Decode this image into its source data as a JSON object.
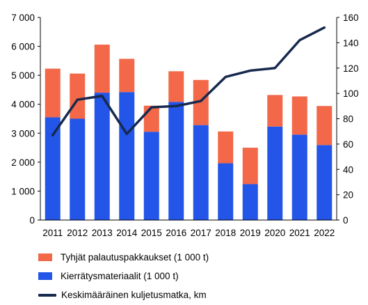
{
  "chart_data": {
    "type": "bar",
    "stacked": true,
    "categories": [
      "2011",
      "2012",
      "2013",
      "2014",
      "2015",
      "2016",
      "2017",
      "2018",
      "2019",
      "2020",
      "2021",
      "2022"
    ],
    "series": [
      {
        "name": "Kierrätysmateriaalit (1 000 t)",
        "type": "bar",
        "axis": "left",
        "color": "#2255e8",
        "values": [
          3550,
          3500,
          4400,
          4420,
          3050,
          4080,
          3280,
          1960,
          1240,
          3230,
          2950,
          2590
        ]
      },
      {
        "name": "Tyhjät palautuspakkaukset (1 000 t)",
        "type": "bar",
        "axis": "left",
        "color": "#f26849",
        "values": [
          1680,
          1560,
          1660,
          1150,
          900,
          1060,
          1560,
          1100,
          1260,
          1090,
          1320,
          1350
        ]
      },
      {
        "name": "Keskimääräinen kuljetusmatka, km",
        "type": "line",
        "axis": "right",
        "color": "#17294d",
        "values": [
          67,
          95,
          98,
          68,
          89,
          90,
          94,
          113,
          118,
          120,
          142,
          152
        ]
      }
    ],
    "y_left": {
      "min": 0,
      "max": 7000,
      "step": 1000,
      "tick_labels": [
        "0",
        "1 000",
        "2 000",
        "3 000",
        "4 000",
        "5 000",
        "6 000",
        "7 000"
      ]
    },
    "y_right": {
      "min": 0,
      "max": 160,
      "step": 20,
      "tick_labels": [
        "0",
        "20",
        "40",
        "60",
        "80",
        "100",
        "120",
        "140",
        "160"
      ]
    },
    "grid": false,
    "legend_position": "bottom"
  },
  "legend": {
    "items": [
      {
        "label": "Tyhjät palautuspakkaukset (1 000 t)",
        "color": "#f26849",
        "kind": "bar"
      },
      {
        "label": "Kierrätysmateriaalit (1 000 t)",
        "color": "#2255e8",
        "kind": "bar"
      },
      {
        "label": "Keskimääräinen kuljetusmatka, km",
        "color": "#17294d",
        "kind": "line"
      }
    ]
  }
}
